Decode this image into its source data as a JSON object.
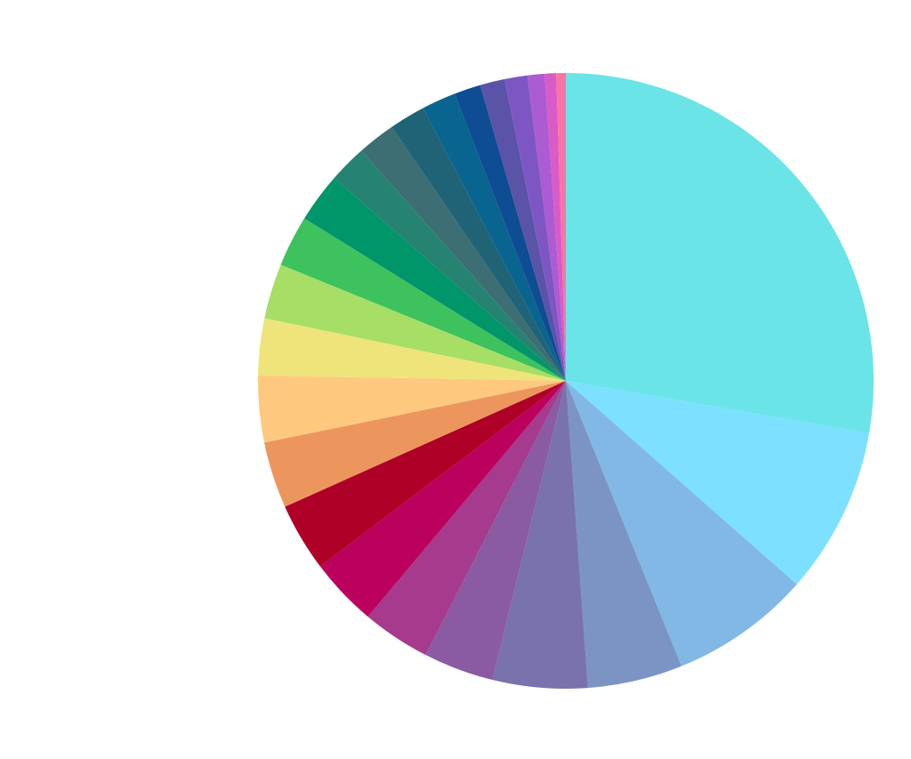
{
  "chart_data": {
    "type": "pie",
    "start": "12 o'clock",
    "direction": "clockwise",
    "legend": "none",
    "values": [
      27.8,
      8.8,
      7.4,
      5.0,
      5.0,
      3.7,
      3.6,
      3.6,
      3.6,
      3.5,
      3.5,
      3.0,
      2.9,
      2.7,
      2.6,
      2.0,
      2.0,
      1.9,
      1.8,
      1.4,
      1.3,
      1.2,
      0.9,
      0.6,
      0.5
    ],
    "colors": [
      "#6be4e8",
      "#7de0ff",
      "#82b8e6",
      "#7c94c4",
      "#7a72ac",
      "#8a5aa2",
      "#a63a8c",
      "#bb005e",
      "#af0028",
      "#ec965d",
      "#fec97f",
      "#eee47a",
      "#a6de66",
      "#3dc25e",
      "#01956a",
      "#268371",
      "#3d6e74",
      "#206377",
      "#09648f",
      "#0e4c93",
      "#5a53a8",
      "#7e56c4",
      "#ad5bd2",
      "#d95bc8",
      "#fb73a4"
    ]
  }
}
